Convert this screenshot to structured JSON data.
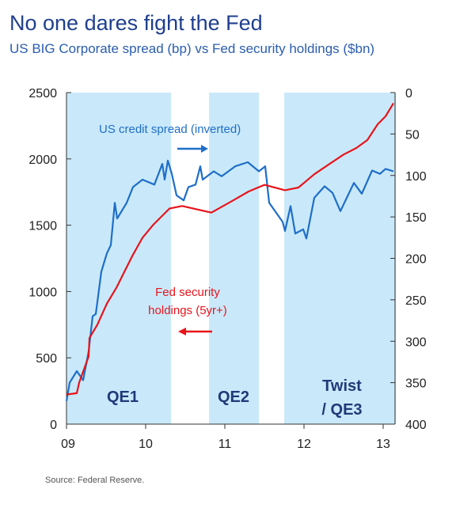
{
  "header": {
    "title": "No one dares fight the Fed",
    "subtitle": "US BIG Corporate spread (bp) vs Fed security holdings ($bn)"
  },
  "footer": {
    "source": "Source: Federal Reserve."
  },
  "chart_data": {
    "type": "line",
    "title": "No one dares fight the Fed",
    "subtitle": "US BIG Corporate spread (bp) vs Fed security holdings ($bn)",
    "x_ticks": [
      9,
      10,
      11,
      12,
      13
    ],
    "x_tick_labels": [
      "09",
      "10",
      "11",
      "12",
      "13"
    ],
    "xlim": [
      9.0,
      13.16
    ],
    "y_left": {
      "lim": [
        0,
        2500
      ],
      "ticks": [
        0,
        500,
        1000,
        1500,
        2000,
        2500
      ]
    },
    "y_right": {
      "lim": [
        0,
        400
      ],
      "inverted": true,
      "ticks": [
        0,
        50,
        100,
        150,
        200,
        250,
        300,
        350,
        400
      ]
    },
    "grid": false,
    "shaded_periods": [
      {
        "label": "QE1",
        "start": 9.0,
        "end": 10.32
      },
      {
        "label": "QE2",
        "start": 10.8,
        "end": 11.43
      },
      {
        "label": "Twist / QE3",
        "label_lines": [
          "Twist",
          "/ QE3"
        ],
        "start": 11.75,
        "end": 13.16
      }
    ],
    "series": [
      {
        "name": "US credit spread (inverted)",
        "axis": "right",
        "color": "#1f6ec8",
        "x": [
          9.0,
          9.04,
          9.13,
          9.21,
          9.28,
          9.33,
          9.37,
          9.44,
          9.51,
          9.56,
          9.61,
          9.64,
          9.76,
          9.84,
          9.96,
          10.11,
          10.21,
          10.24,
          10.28,
          10.33,
          10.39,
          10.48,
          10.54,
          10.63,
          10.69,
          10.72,
          10.86,
          10.96,
          11.13,
          11.29,
          11.43,
          11.51,
          11.56,
          11.73,
          11.76,
          11.83,
          11.89,
          11.99,
          12.03,
          12.13,
          12.26,
          12.36,
          12.46,
          12.54,
          12.63,
          12.73,
          12.86,
          12.96,
          13.03,
          13.13
        ],
        "y": [
          372,
          350,
          336,
          347,
          312,
          270,
          267,
          216,
          194,
          184,
          133,
          152,
          133,
          114,
          105,
          111,
          86,
          105,
          82,
          98,
          124,
          130,
          114,
          111,
          89,
          105,
          95,
          101,
          89,
          84,
          95,
          89,
          133,
          156,
          167,
          137,
          170,
          165,
          176,
          127,
          113,
          121,
          143,
          127,
          109,
          122,
          94,
          98,
          92,
          95
        ]
      },
      {
        "name": "Fed security holdings (5yr+)",
        "axis": "left",
        "color": "#e8141b",
        "x": [
          9.0,
          9.13,
          9.16,
          9.28,
          9.29,
          9.39,
          9.51,
          9.63,
          9.73,
          9.83,
          9.96,
          10.1,
          10.3,
          10.46,
          10.83,
          11.1,
          11.3,
          11.5,
          11.76,
          11.93,
          12.13,
          12.3,
          12.5,
          12.66,
          12.8,
          12.93,
          13.03,
          13.13
        ],
        "y": [
          223,
          233,
          313,
          511,
          650,
          750,
          909,
          1028,
          1148,
          1267,
          1406,
          1506,
          1625,
          1645,
          1595,
          1685,
          1754,
          1804,
          1764,
          1784,
          1884,
          1953,
          2033,
          2082,
          2142,
          2261,
          2321,
          2420
        ]
      }
    ],
    "annotations": {
      "spread_label": "US credit spread (inverted)",
      "fed_label_lines": [
        "Fed security",
        "holdings (5yr+)"
      ]
    },
    "colors": {
      "shade": "#c9e9fa",
      "period_text": "#1f3a78",
      "axis": "#333333"
    }
  }
}
